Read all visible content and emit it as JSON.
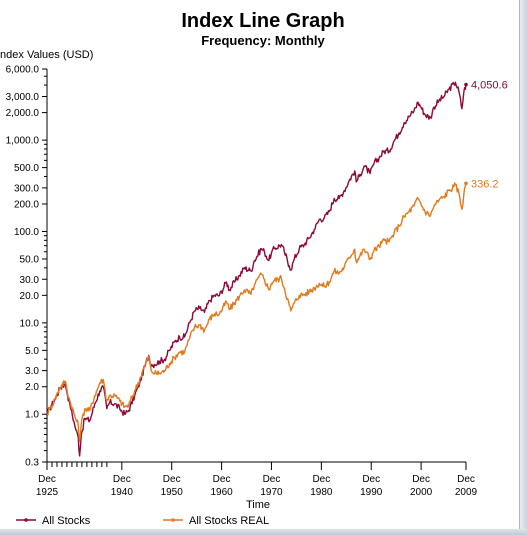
{
  "chart_data": {
    "type": "line",
    "title": "Index Line Graph",
    "subtitle": "Frequency: Monthly",
    "ylabel": "Index Values (USD)",
    "xlabel": "Time",
    "y_scale": "log",
    "xlim": [
      1925.92,
      2009.92
    ],
    "ylim": [
      0.3,
      6000
    ],
    "y_ticks": [
      {
        "value": 6000,
        "label": "6,000.0"
      },
      {
        "value": 3000,
        "label": "3,000.0"
      },
      {
        "value": 2000,
        "label": "2,000.0"
      },
      {
        "value": 1000,
        "label": "1,000.0"
      },
      {
        "value": 500,
        "label": "500.0"
      },
      {
        "value": 300,
        "label": "300.0"
      },
      {
        "value": 200,
        "label": "200.0"
      },
      {
        "value": 100,
        "label": "100.0"
      },
      {
        "value": 50,
        "label": "50.0"
      },
      {
        "value": 30,
        "label": "30.0"
      },
      {
        "value": 20,
        "label": "20.0"
      },
      {
        "value": 10,
        "label": "10.0"
      },
      {
        "value": 5,
        "label": "5.0"
      },
      {
        "value": 3,
        "label": "3.0"
      },
      {
        "value": 2,
        "label": "2.0"
      },
      {
        "value": 1,
        "label": "1.0"
      },
      {
        "value": 0.3,
        "label": "0.3"
      }
    ],
    "x_ticks": [
      {
        "value": 1925.92,
        "month": "Dec",
        "year": "1925"
      },
      {
        "value": 1940.92,
        "month": "Dec",
        "year": "1940"
      },
      {
        "value": 1950.92,
        "month": "Dec",
        "year": "1950"
      },
      {
        "value": 1960.92,
        "month": "Dec",
        "year": "1960"
      },
      {
        "value": 1970.92,
        "month": "Dec",
        "year": "1970"
      },
      {
        "value": 1980.92,
        "month": "Dec",
        "year": "1980"
      },
      {
        "value": 1990.92,
        "month": "Dec",
        "year": "1990"
      },
      {
        "value": 2000.92,
        "month": "Dec",
        "year": "2000"
      },
      {
        "value": 2009.92,
        "month": "Dec",
        "year": "2009"
      }
    ],
    "x_minor_ticks": [
      1926.92,
      1927.92,
      1928.92,
      1929.92,
      1930.92,
      1931.92,
      1932.92,
      1933.92,
      1934.92,
      1935.92,
      1936.92,
      1937.92
    ],
    "grid": false,
    "legend_position": "bottom-left",
    "series": [
      {
        "name": "All Stocks",
        "color": "#8b0a3a",
        "end_label": "4,050.6",
        "points": [
          [
            1925.92,
            1.0
          ],
          [
            1926.5,
            1.15
          ],
          [
            1927.5,
            1.45
          ],
          [
            1928.5,
            1.9
          ],
          [
            1929.6,
            2.2
          ],
          [
            1929.9,
            1.75
          ],
          [
            1930.5,
            1.3
          ],
          [
            1931.5,
            0.75
          ],
          [
            1932.2,
            0.55
          ],
          [
            1932.45,
            0.35
          ],
          [
            1932.8,
            0.6
          ],
          [
            1933.5,
            0.9
          ],
          [
            1934.5,
            0.85
          ],
          [
            1935.5,
            1.3
          ],
          [
            1936.5,
            1.8
          ],
          [
            1937.2,
            2.0
          ],
          [
            1937.9,
            1.15
          ],
          [
            1938.5,
            1.35
          ],
          [
            1939.5,
            1.3
          ],
          [
            1940.5,
            1.15
          ],
          [
            1941.5,
            1.0
          ],
          [
            1942.3,
            1.1
          ],
          [
            1943.5,
            1.6
          ],
          [
            1944.5,
            2.2
          ],
          [
            1945.5,
            3.3
          ],
          [
            1946.3,
            4.4
          ],
          [
            1946.8,
            3.5
          ],
          [
            1947.5,
            3.5
          ],
          [
            1948.5,
            3.8
          ],
          [
            1949.5,
            4.0
          ],
          [
            1950.5,
            5.0
          ],
          [
            1951.5,
            6.2
          ],
          [
            1952.5,
            7.0
          ],
          [
            1953.5,
            7.0
          ],
          [
            1954.5,
            10.0
          ],
          [
            1955.5,
            13.5
          ],
          [
            1956.5,
            14.5
          ],
          [
            1957.5,
            13.0
          ],
          [
            1958.5,
            17.5
          ],
          [
            1959.5,
            20.0
          ],
          [
            1960.5,
            20.0
          ],
          [
            1961.9,
            28.0
          ],
          [
            1962.5,
            23.0
          ],
          [
            1963.5,
            28.0
          ],
          [
            1964.5,
            33.0
          ],
          [
            1965.5,
            40.0
          ],
          [
            1966.8,
            37.0
          ],
          [
            1967.5,
            48.0
          ],
          [
            1968.9,
            65.0
          ],
          [
            1969.5,
            60.0
          ],
          [
            1970.4,
            48.0
          ],
          [
            1970.9,
            58.0
          ],
          [
            1971.5,
            65.0
          ],
          [
            1972.9,
            72.0
          ],
          [
            1973.5,
            60.0
          ],
          [
            1974.5,
            42.0
          ],
          [
            1974.8,
            38.0
          ],
          [
            1975.5,
            50.0
          ],
          [
            1976.5,
            65.0
          ],
          [
            1977.5,
            72.0
          ],
          [
            1978.5,
            85.0
          ],
          [
            1979.5,
            105.0
          ],
          [
            1980.5,
            135.0
          ],
          [
            1981.5,
            140.0
          ],
          [
            1982.5,
            165.0
          ],
          [
            1983.5,
            230.0
          ],
          [
            1984.5,
            230.0
          ],
          [
            1985.5,
            280.0
          ],
          [
            1986.5,
            360.0
          ],
          [
            1987.6,
            460.0
          ],
          [
            1987.9,
            350.0
          ],
          [
            1988.5,
            400.0
          ],
          [
            1989.5,
            520.0
          ],
          [
            1990.7,
            430.0
          ],
          [
            1991.5,
            560.0
          ],
          [
            1992.5,
            640.0
          ],
          [
            1993.5,
            760.0
          ],
          [
            1994.5,
            760.0
          ],
          [
            1995.5,
            980.0
          ],
          [
            1996.5,
            1200.0
          ],
          [
            1997.5,
            1550.0
          ],
          [
            1998.5,
            1800.0
          ],
          [
            1999.5,
            2100.0
          ],
          [
            2000.3,
            2600.0
          ],
          [
            2000.9,
            2300.0
          ],
          [
            2001.7,
            1900.0
          ],
          [
            2002.8,
            1750.0
          ],
          [
            2003.5,
            2300.0
          ],
          [
            2004.5,
            2700.0
          ],
          [
            2005.5,
            3000.0
          ],
          [
            2006.5,
            3600.0
          ],
          [
            2007.5,
            4100.0
          ],
          [
            2007.8,
            4300.0
          ],
          [
            2008.5,
            3400.0
          ],
          [
            2009.1,
            2200.0
          ],
          [
            2009.5,
            3400.0
          ],
          [
            2009.92,
            4050.6
          ]
        ]
      },
      {
        "name": "All Stocks REAL",
        "color": "#e07a1e",
        "end_label": "336.2",
        "points": [
          [
            1925.92,
            1.0
          ],
          [
            1926.5,
            1.15
          ],
          [
            1927.5,
            1.45
          ],
          [
            1928.5,
            1.95
          ],
          [
            1929.6,
            2.3
          ],
          [
            1929.9,
            1.85
          ],
          [
            1930.5,
            1.4
          ],
          [
            1931.5,
            0.95
          ],
          [
            1932.2,
            0.75
          ],
          [
            1932.45,
            0.5
          ],
          [
            1932.8,
            0.8
          ],
          [
            1933.5,
            1.15
          ],
          [
            1934.5,
            1.1
          ],
          [
            1935.5,
            1.6
          ],
          [
            1936.5,
            2.2
          ],
          [
            1937.2,
            2.4
          ],
          [
            1937.9,
            1.4
          ],
          [
            1938.5,
            1.6
          ],
          [
            1939.5,
            1.6
          ],
          [
            1940.5,
            1.4
          ],
          [
            1941.5,
            1.2
          ],
          [
            1942.3,
            1.25
          ],
          [
            1943.5,
            1.8
          ],
          [
            1944.5,
            2.4
          ],
          [
            1945.5,
            3.4
          ],
          [
            1946.3,
            4.3
          ],
          [
            1946.8,
            3.0
          ],
          [
            1947.5,
            2.8
          ],
          [
            1948.5,
            2.8
          ],
          [
            1949.5,
            3.0
          ],
          [
            1950.5,
            3.6
          ],
          [
            1951.5,
            4.2
          ],
          [
            1952.5,
            4.8
          ],
          [
            1953.5,
            4.8
          ],
          [
            1954.5,
            6.8
          ],
          [
            1955.5,
            9.0
          ],
          [
            1956.5,
            9.5
          ],
          [
            1957.5,
            8.3
          ],
          [
            1958.5,
            11.0
          ],
          [
            1959.5,
            12.5
          ],
          [
            1960.5,
            12.5
          ],
          [
            1961.9,
            17.0
          ],
          [
            1962.5,
            14.0
          ],
          [
            1963.5,
            16.5
          ],
          [
            1964.5,
            19.5
          ],
          [
            1965.5,
            23.0
          ],
          [
            1966.8,
            20.5
          ],
          [
            1967.5,
            26.0
          ],
          [
            1968.9,
            34.0
          ],
          [
            1969.5,
            30.0
          ],
          [
            1970.4,
            23.0
          ],
          [
            1970.9,
            27.0
          ],
          [
            1971.5,
            29.0
          ],
          [
            1972.9,
            31.0
          ],
          [
            1973.5,
            24.0
          ],
          [
            1974.5,
            15.5
          ],
          [
            1974.8,
            13.5
          ],
          [
            1975.5,
            16.5
          ],
          [
            1976.5,
            20.0
          ],
          [
            1977.5,
            20.5
          ],
          [
            1978.5,
            22.0
          ],
          [
            1979.5,
            24.0
          ],
          [
            1980.5,
            27.0
          ],
          [
            1981.5,
            25.0
          ],
          [
            1982.5,
            28.0
          ],
          [
            1983.5,
            37.0
          ],
          [
            1984.5,
            35.0
          ],
          [
            1985.5,
            41.0
          ],
          [
            1986.5,
            52.0
          ],
          [
            1987.6,
            64.0
          ],
          [
            1987.9,
            47.0
          ],
          [
            1988.5,
            52.0
          ],
          [
            1989.5,
            64.0
          ],
          [
            1990.7,
            50.0
          ],
          [
            1991.5,
            62.0
          ],
          [
            1992.5,
            69.0
          ],
          [
            1993.5,
            80.0
          ],
          [
            1994.5,
            77.0
          ],
          [
            1995.5,
            96.0
          ],
          [
            1996.5,
            115.0
          ],
          [
            1997.5,
            145.0
          ],
          [
            1998.5,
            165.0
          ],
          [
            1999.5,
            190.0
          ],
          [
            2000.3,
            230.0
          ],
          [
            2000.9,
            200.0
          ],
          [
            2001.7,
            165.0
          ],
          [
            2002.8,
            150.0
          ],
          [
            2003.5,
            190.0
          ],
          [
            2004.5,
            220.0
          ],
          [
            2005.5,
            240.0
          ],
          [
            2006.5,
            280.0
          ],
          [
            2007.5,
            310.0
          ],
          [
            2007.8,
            325.0
          ],
          [
            2008.5,
            260.0
          ],
          [
            2009.1,
            175.0
          ],
          [
            2009.5,
            260.0
          ],
          [
            2009.92,
            336.2
          ]
        ]
      }
    ]
  }
}
